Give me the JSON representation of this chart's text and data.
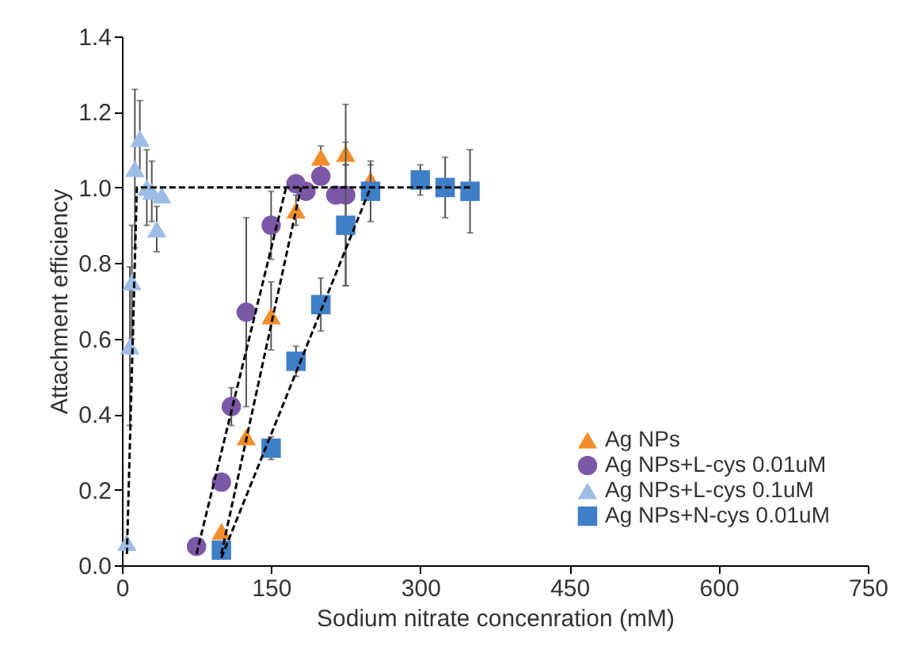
{
  "chart_data": {
    "type": "scatter",
    "xlabel": "Sodium nitrate concenration (mM)",
    "ylabel": "Attachment efficiency",
    "xlim": [
      0,
      750
    ],
    "xticks": [
      0,
      150,
      300,
      450,
      600,
      750
    ],
    "ylim": [
      0,
      1.4
    ],
    "yticks": [
      {
        "value": 0,
        "label": "0.0"
      },
      0.2,
      0.4,
      0.6,
      0.8,
      {
        "value": 1,
        "label": "1.0"
      },
      1.2,
      1.4
    ],
    "legend": "bottom right",
    "grid": false,
    "series": [
      {
        "name": "Ag NPs",
        "color": "#f28e2b",
        "marker": "triangle",
        "x": [
          100,
          125,
          150,
          175,
          200,
          225,
          250
        ],
        "values": [
          0.09,
          0.34,
          0.66,
          0.94,
          1.08,
          1.09,
          1.02
        ],
        "errors": [
          null,
          null,
          0.09,
          0.04,
          0.03,
          0.03,
          0.04
        ]
      },
      {
        "name": "Ag NPs+L-cys 0.01uM",
        "color": "#7b58a6",
        "marker": "circle",
        "x": [
          75,
          100,
          110,
          125,
          150,
          175,
          185,
          200,
          215,
          225
        ],
        "values": [
          0.05,
          0.22,
          0.42,
          0.67,
          0.9,
          1.01,
          0.99,
          1.03,
          0.98,
          0.98
        ],
        "errors": [
          null,
          null,
          0.05,
          0.25,
          0.09,
          null,
          null,
          null,
          null,
          0.24
        ]
      },
      {
        "name": "Ag NPs+L-cys 0.1uM",
        "color": "#9dbde6",
        "marker": "triangle",
        "x": [
          5,
          8,
          10,
          13,
          18,
          25,
          30,
          35,
          40
        ],
        "values": [
          0.06,
          0.58,
          0.75,
          1.05,
          1.13,
          1.0,
          0.99,
          0.89,
          0.98
        ],
        "errors": [
          null,
          0.21,
          0.15,
          0.21,
          0.1,
          0.1,
          0.08,
          0.06,
          null
        ]
      },
      {
        "name": "Ag NPs+N-cys 0.01uM",
        "color": "#3f7fc8",
        "marker": "square",
        "x": [
          100,
          150,
          175,
          200,
          225,
          250,
          300,
          325,
          350
        ],
        "values": [
          0.04,
          0.31,
          0.54,
          0.69,
          0.9,
          0.99,
          1.02,
          1.0,
          0.99
        ],
        "errors": [
          null,
          0.03,
          0.04,
          0.07,
          0.16,
          0.08,
          0.04,
          0.08,
          0.11
        ]
      },
      {
        "type": "line",
        "color": "#000000",
        "marker": "none",
        "line_style": "dashed",
        "x": [
          5,
          15,
          350
        ],
        "values": [
          0.03,
          1.0,
          1.0
        ]
      },
      {
        "type": "line",
        "color": "#000000",
        "marker": "none",
        "line_style": "dashed",
        "x": [
          75,
          165
        ],
        "values": [
          0.03,
          1.0
        ]
      },
      {
        "type": "line",
        "color": "#000000",
        "marker": "none",
        "line_style": "dashed",
        "x": [
          100,
          180
        ],
        "values": [
          0.03,
          1.0
        ]
      },
      {
        "type": "line",
        "color": "#000000",
        "marker": "none",
        "line_style": "dashed",
        "x": [
          100,
          250
        ],
        "values": [
          0.02,
          1.0
        ]
      }
    ]
  }
}
